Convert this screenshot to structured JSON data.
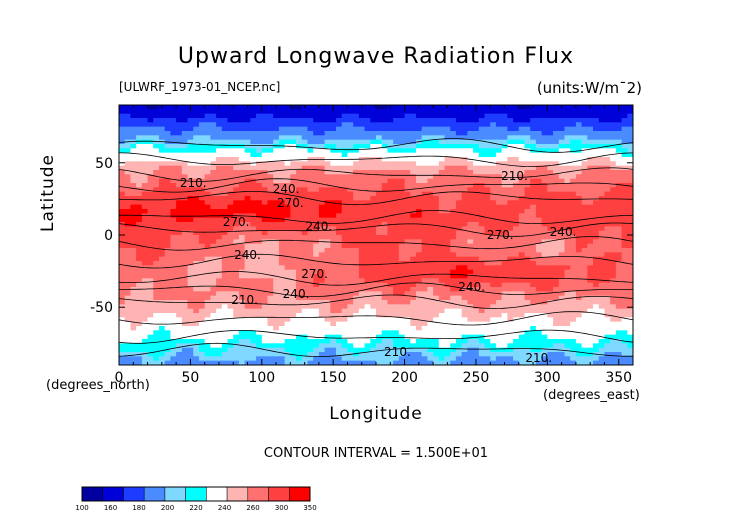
{
  "chart_data": {
    "type": "heatmap",
    "title": "Upward Longwave Radiation Flux",
    "subtitle_left": "[ULWRF_1973-01_NCEP.nc]",
    "subtitle_right": "(units:W/m^2)",
    "xlabel": "Longitude",
    "ylabel": "Latitude",
    "x_units": "(degrees_east)",
    "y_units": "(degrees_north)",
    "xlim": [
      0,
      360
    ],
    "ylim": [
      -90,
      90
    ],
    "x_ticks": [
      0,
      50,
      100,
      150,
      200,
      250,
      300,
      350
    ],
    "y_ticks": [
      -50,
      0,
      50
    ],
    "contour_interval_text": "CONTOUR INTERVAL = 1.500E+01",
    "contour_labels": [
      {
        "text": "210.",
        "lon": 52,
        "lat": 36
      },
      {
        "text": "240.",
        "lon": 117,
        "lat": 32
      },
      {
        "text": "270.",
        "lon": 120,
        "lat": 22
      },
      {
        "text": "270.",
        "lon": 82,
        "lat": 9
      },
      {
        "text": "240.",
        "lon": 140,
        "lat": 6
      },
      {
        "text": "240.",
        "lon": 90,
        "lat": -14
      },
      {
        "text": "270.",
        "lon": 137,
        "lat": -27
      },
      {
        "text": "240.",
        "lon": 247,
        "lat": -36
      },
      {
        "text": "240.",
        "lon": 124,
        "lat": -41
      },
      {
        "text": "210.",
        "lon": 88,
        "lat": -45
      },
      {
        "text": "210.",
        "lon": 277,
        "lat": 41
      },
      {
        "text": "270.",
        "lon": 267,
        "lat": 0
      },
      {
        "text": "240.",
        "lon": 311,
        "lat": 2
      },
      {
        "text": "210.",
        "lon": 195,
        "lat": -81
      },
      {
        "text": "210.",
        "lon": 294,
        "lat": -85
      }
    ],
    "colorbar": {
      "levels": [
        100,
        160,
        180,
        200,
        220,
        240,
        260,
        300,
        350
      ],
      "colors": [
        "#0000a0",
        "#0000d8",
        "#1e3cff",
        "#4a8cff",
        "#7fd8ff",
        "#00ffff",
        "#ffffff",
        "#ffb4b4",
        "#ff7070",
        "#ff4040",
        "#ff0000"
      ]
    }
  }
}
